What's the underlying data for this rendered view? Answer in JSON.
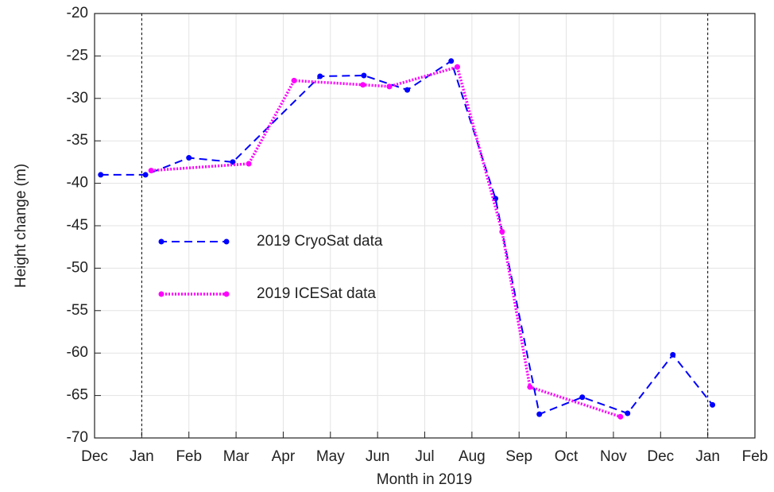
{
  "chart_data": {
    "type": "line",
    "xlabel": "Month in 2019",
    "ylabel": "Height change (m)",
    "xlim": [
      0,
      14
    ],
    "xticks": [
      {
        "value": 0,
        "label": "Dec"
      },
      {
        "value": 1,
        "label": "Jan"
      },
      {
        "value": 2,
        "label": "Feb"
      },
      {
        "value": 3,
        "label": "Mar"
      },
      {
        "value": 4,
        "label": "Apr"
      },
      {
        "value": 5,
        "label": "May"
      },
      {
        "value": 6,
        "label": "Jun"
      },
      {
        "value": 7,
        "label": "Jul"
      },
      {
        "value": 8,
        "label": "Aug"
      },
      {
        "value": 9,
        "label": "Sep"
      },
      {
        "value": 10,
        "label": "Oct"
      },
      {
        "value": 11,
        "label": "Nov"
      },
      {
        "value": 12,
        "label": "Dec"
      },
      {
        "value": 13,
        "label": "Jan"
      },
      {
        "value": 14,
        "label": "Feb"
      }
    ],
    "ylim": [
      -70,
      -20
    ],
    "yticks": [
      -70,
      -65,
      -60,
      -55,
      -50,
      -45,
      -40,
      -35,
      -30,
      -25,
      -20
    ],
    "grid": true,
    "vlines": [
      1,
      13
    ],
    "legend": "center left",
    "series": [
      {
        "name": "2019 CryoSat data",
        "color": "#0000ff",
        "dash": "dashed",
        "x": [
          0.13,
          1.08,
          2.0,
          2.93,
          4.78,
          5.71,
          6.63,
          7.56,
          8.5,
          9.43,
          10.34,
          11.3,
          12.26,
          13.1
        ],
        "values": [
          -39,
          -39,
          -37,
          -37.5,
          -27.4,
          -27.3,
          -29,
          -25.6,
          -41.8,
          -67.2,
          -65.2,
          -67.1,
          -60.2,
          -66.1
        ]
      },
      {
        "name": "2019 ICESat data",
        "color": "#ff00ff",
        "dash": "dotted",
        "x": [
          1.2,
          3.27,
          4.23,
          5.69,
          6.25,
          7.69,
          8.64,
          9.23,
          11.15
        ],
        "values": [
          -38.5,
          -37.7,
          -27.9,
          -28.4,
          -28.6,
          -26.3,
          -45.7,
          -64,
          -67.5
        ]
      }
    ]
  }
}
